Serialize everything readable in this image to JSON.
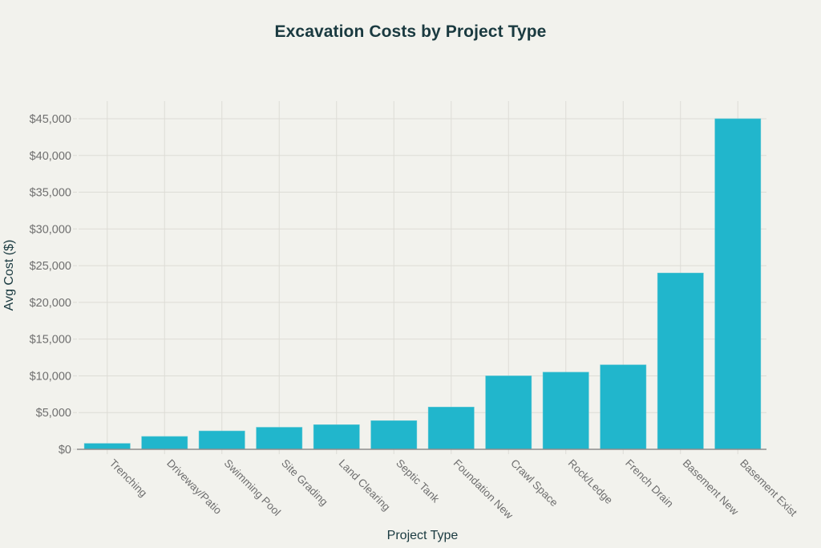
{
  "chart_data": {
    "type": "bar",
    "title": "Excavation Costs by Project Type",
    "xlabel": "Project Type",
    "ylabel": "Avg Cost ($)",
    "categories": [
      "Trenching",
      "Driveway/Patio",
      "Swimming Pool",
      "Site Grading",
      "Land Clearing",
      "Septic Tank",
      "Foundation New",
      "Crawl Space",
      "Rock/Ledge",
      "French Drain",
      "Basement New",
      "Basement Exist"
    ],
    "values": [
      800,
      1750,
      2500,
      3000,
      3350,
      3900,
      5750,
      10000,
      10500,
      11500,
      24000,
      45000
    ],
    "ylim": [
      0,
      47400
    ],
    "yticks": [
      0,
      5000,
      10000,
      15000,
      20000,
      25000,
      30000,
      35000,
      40000,
      45000
    ],
    "ytick_labels": [
      "$0",
      "$5,000",
      "$10,000",
      "$15,000",
      "$20,000",
      "$25,000",
      "$30,000",
      "$35,000",
      "$40,000",
      "$45,000"
    ],
    "grid": true,
    "legend": "none",
    "colors": {
      "bar": "#21b6cc",
      "bar_edge": "#5fc6d3",
      "grid": "#dddcd6",
      "axis": "#8c8c8c",
      "background": "#f2f2ed"
    }
  }
}
